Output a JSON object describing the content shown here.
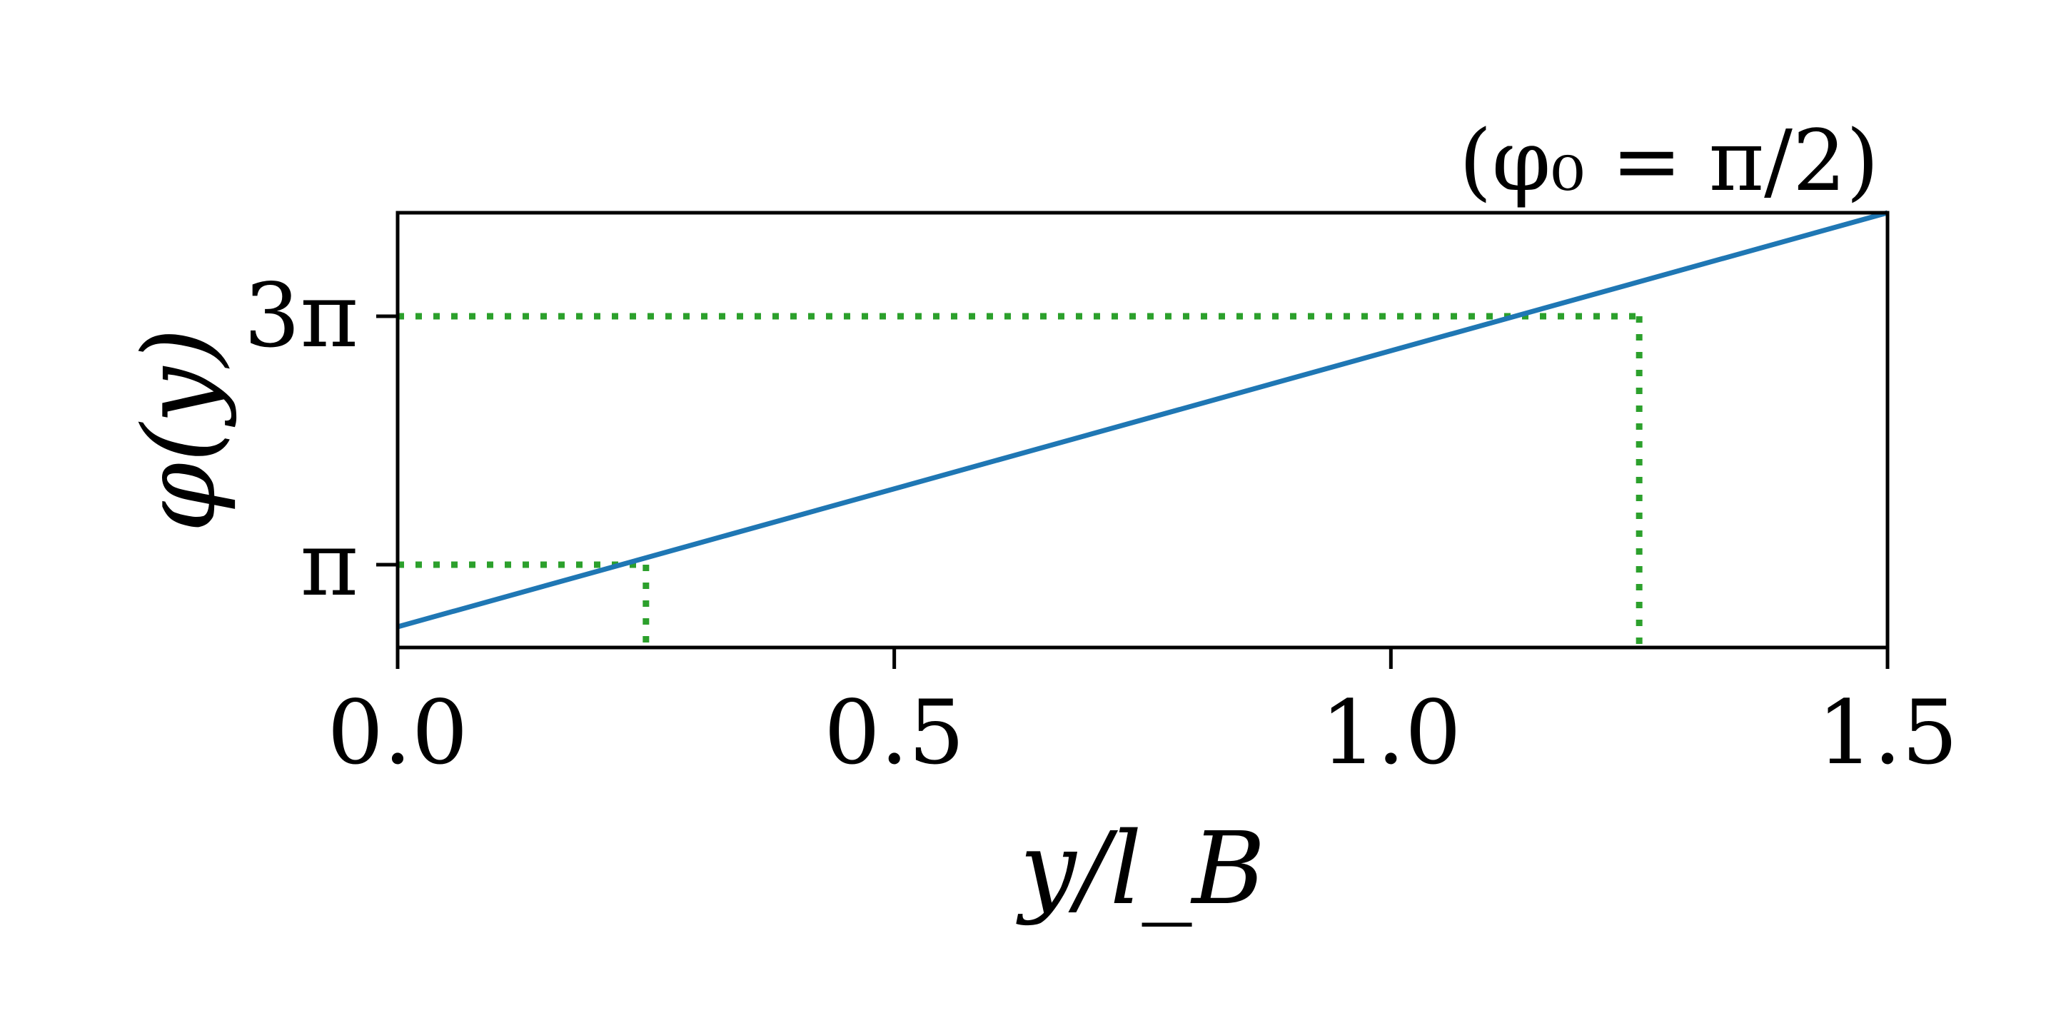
{
  "chart_data": {
    "type": "line",
    "title": "",
    "annotation": "(φ₀ = π/2)",
    "xlabel": "y/l_B",
    "ylabel": "φ(y)",
    "xlim": [
      0.0,
      1.5
    ],
    "ylim": [
      0.5,
      3.125
    ],
    "xticks": [
      {
        "value": 0.0,
        "label": "0.0"
      },
      {
        "value": 0.5,
        "label": "0.5"
      },
      {
        "value": 1.0,
        "label": "1.0"
      },
      {
        "value": 1.5,
        "label": "1.5"
      }
    ],
    "yticks": [
      {
        "value": 1.0,
        "label": "π"
      },
      {
        "value": 2.5,
        "label": "3π"
      }
    ],
    "series": [
      {
        "x": [
          0.0,
          1.5
        ],
        "y": [
          0.625,
          3.125
        ],
        "color": "#1f77b4"
      }
    ],
    "guides": [
      {
        "x": 0.25,
        "y": 1.0,
        "color": "#2ca02c"
      },
      {
        "x": 1.25,
        "y": 2.5,
        "color": "#2ca02c"
      }
    ],
    "grid": false,
    "legend": "none"
  }
}
